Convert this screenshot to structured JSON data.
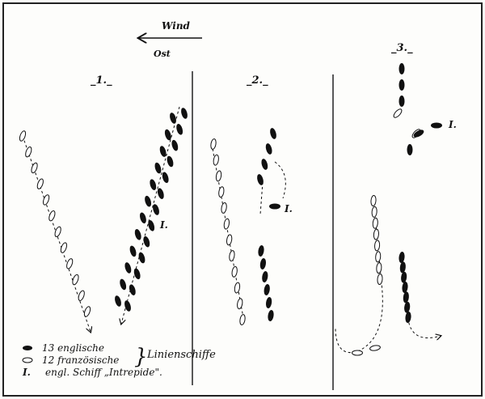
{
  "wind": {
    "label": "Wind",
    "direction": "Ost"
  },
  "panels": [
    {
      "label": "_1._",
      "intrepide_label": "I."
    },
    {
      "label": "_2._",
      "intrepide_label": "I."
    },
    {
      "label": "_3._",
      "intrepide_label": "I."
    }
  ],
  "legend": {
    "english": "13 englische",
    "french": "12 französische",
    "group": "Linienschiffe",
    "intrepide_marker": "I.",
    "intrepide": "engl. Schiff „Intrepide\"."
  },
  "colors": {
    "english": "#111111",
    "french": "#ffffff",
    "ink": "#111111"
  }
}
